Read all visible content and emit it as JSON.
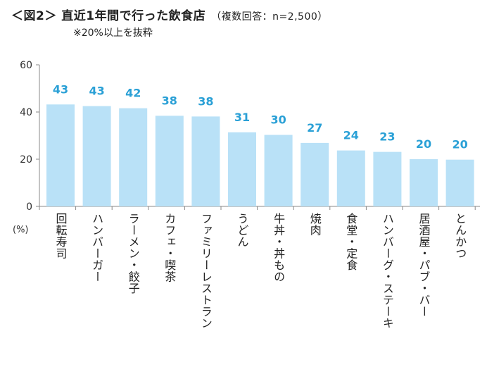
{
  "header": {
    "title": "＜図2＞ 直近1年間で行った飲食店",
    "subtitle": "（複数回答：n=2,500）",
    "note": "※20%以上を抜粋"
  },
  "chart_data": {
    "type": "bar",
    "title": "＜図2＞ 直近1年間で行った飲食店",
    "subtitle": "（複数回答：n=2,500）",
    "note": "※20%以上を抜粋",
    "categories": [
      "回転寿司",
      "ハンバーガー",
      "ラーメン・餃子",
      "カフェ・喫茶",
      "ファミリーレストラン",
      "うどん",
      "牛丼・丼もの",
      "焼肉",
      "食堂・定食",
      "ハンバーグ・ステーキ",
      "居酒屋・パブ・バー",
      "とんかつ"
    ],
    "values": [
      43,
      43,
      42,
      38,
      38,
      31,
      30,
      27,
      24,
      23,
      20,
      20
    ],
    "bar_heights": [
      43.2,
      42.5,
      41.6,
      38.4,
      38.1,
      31.4,
      30.3,
      26.9,
      23.7,
      23.1,
      20.0,
      19.8
    ],
    "yticks": [
      0,
      20,
      40,
      60
    ],
    "ylim": [
      0,
      60
    ],
    "unit_label": "(%)",
    "xlabel": "",
    "ylabel": "",
    "bar_color": "#b9e1f7",
    "label_color": "#2aa0d6",
    "grid": false
  }
}
